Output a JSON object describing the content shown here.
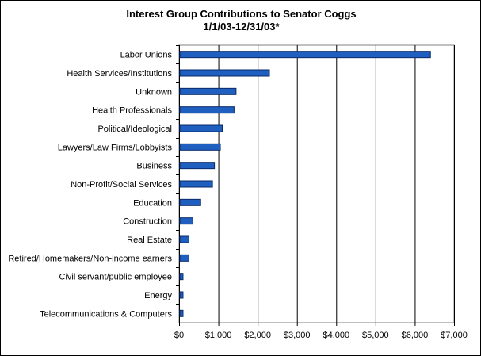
{
  "chart_data": {
    "type": "bar",
    "orientation": "horizontal",
    "title": "Interest Group Contributions to Senator Coggs",
    "subtitle": "1/1/03-12/31/03*",
    "categories": [
      "Labor Unions",
      "Health Services/Institutions",
      "Unknown",
      "Health Professionals",
      "Political/Ideological",
      "Lawyers/Law Firms/Lobbyists",
      "Business",
      "Non-Profit/Social Services",
      "Education",
      "Construction",
      "Real Estate",
      "Retired/Homemakers/Non-income earners",
      "Civil servant/public employee",
      "Energy",
      "Telecommunications & Computers"
    ],
    "values": [
      6400,
      2300,
      1450,
      1400,
      1100,
      1050,
      900,
      850,
      550,
      350,
      250,
      250,
      100,
      100,
      100
    ],
    "xlim": [
      0,
      7000
    ],
    "x_ticks": [
      "$0",
      "$1,000",
      "$2,000",
      "$3,000",
      "$4,000",
      "$5,000",
      "$6,000",
      "$7,000"
    ],
    "grid": "vertical",
    "legend": "none",
    "colors": {
      "bar_fill": "#1f5fbf",
      "bar_edge": "#0a2a6a",
      "grid": "#000000",
      "axis": "#808080"
    }
  }
}
